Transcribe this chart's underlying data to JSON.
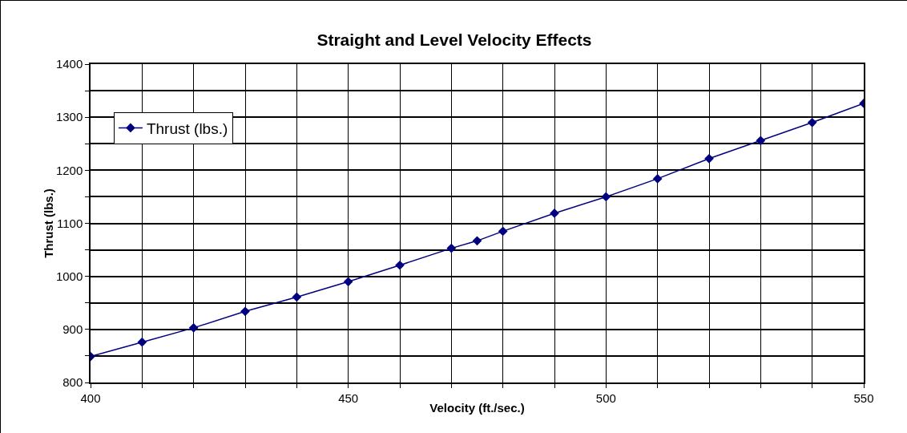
{
  "chart_data": {
    "type": "line",
    "title": "Straight and Level Velocity Effects",
    "xlabel": "Velocity (ft./sec.)",
    "ylabel": "Thrust (lbs.)",
    "x": [
      400,
      410,
      420,
      430,
      440,
      450,
      460,
      470,
      475,
      480,
      490,
      500,
      510,
      520,
      530,
      540,
      550
    ],
    "series": [
      {
        "name": "Thrust (lbs.)",
        "color": "#000080",
        "values": [
          849,
          876,
          903,
          934,
          961,
          990,
          1021,
          1053,
          1067,
          1085,
          1119,
          1150,
          1184,
          1222,
          1256,
          1290,
          1326
        ]
      }
    ],
    "xlim": [
      400,
      550
    ],
    "xticks": [
      400,
      {
        "value": 410,
        "label": null
      },
      {
        "value": 420,
        "label": null
      },
      {
        "value": 430,
        "label": null
      },
      {
        "value": 440,
        "label": null
      },
      450,
      {
        "value": 460,
        "label": null
      },
      {
        "value": 470,
        "label": null
      },
      {
        "value": 480,
        "label": null
      },
      {
        "value": 490,
        "label": null
      },
      500,
      {
        "value": 510,
        "label": null
      },
      {
        "value": 520,
        "label": null
      },
      {
        "value": 530,
        "label": null
      },
      {
        "value": 540,
        "label": null
      },
      550
    ],
    "ylim": [
      800,
      1400
    ],
    "yticks": [
      800,
      {
        "value": 850,
        "label": null
      },
      900,
      {
        "value": 950,
        "label": null
      },
      1000,
      {
        "value": 1050,
        "label": null
      },
      1100,
      {
        "value": 1150,
        "label": null
      },
      1200,
      {
        "value": 1250,
        "label": null
      },
      1300,
      {
        "value": 1350,
        "label": null
      },
      1400
    ],
    "grid": true,
    "legend": "top left",
    "marker": "diamond",
    "line_style": "solid"
  }
}
